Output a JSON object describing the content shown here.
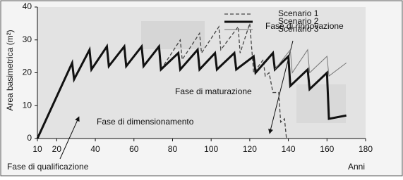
{
  "chart_data": {
    "type": "line",
    "y_label": "Area basimetrica (m²)",
    "x_label": "Anni",
    "xlim": [
      10,
      180
    ],
    "xticks": [
      10,
      20,
      40,
      60,
      80,
      100,
      120,
      140,
      160,
      180
    ],
    "ylim": [
      0,
      40
    ],
    "yticks": [
      0,
      10,
      20,
      30,
      40
    ],
    "legend": "top",
    "series": [
      {
        "name": "Scenario 1",
        "color": "#444444",
        "dashed": true,
        "line_width": 1.3,
        "x": [
          74,
          84,
          85,
          94,
          95,
          104,
          105,
          114,
          115,
          120,
          122,
          127,
          128,
          130,
          132,
          135,
          136,
          138,
          139
        ],
        "values": [
          21,
          30,
          24,
          32,
          26,
          34,
          27,
          34,
          26,
          35,
          20,
          24,
          19,
          20,
          14,
          14,
          5,
          6,
          0
        ]
      },
      {
        "name": "Scenario 2",
        "color": "#111111",
        "dashed": false,
        "line_width": 3,
        "x": [
          10,
          28,
          29,
          37,
          38,
          46,
          47,
          55,
          56,
          64,
          65,
          73,
          74,
          83,
          84,
          93,
          94,
          102,
          103,
          112,
          113,
          122,
          123,
          132,
          133,
          140,
          141,
          150,
          151,
          160,
          161,
          170
        ],
        "values": [
          0,
          23,
          18,
          27,
          21,
          28,
          22,
          28,
          22,
          28,
          22,
          28,
          21,
          26,
          21,
          27,
          21,
          26,
          21,
          26,
          21,
          25,
          20,
          26,
          21,
          25,
          16,
          21,
          15,
          20,
          6,
          7
        ]
      },
      {
        "name": "Scenario 3",
        "color": "#777777",
        "dashed": false,
        "line_width": 1,
        "x": [
          133,
          141,
          142,
          150,
          151,
          160,
          161,
          170
        ],
        "values": [
          21,
          27,
          20,
          27,
          20,
          25,
          19,
          23
        ]
      }
    ],
    "annotations": [
      "Fase di rinnovazione",
      "Fase di maturazione",
      "Fase di dimensionamento",
      "Fase di qualificazione"
    ]
  }
}
